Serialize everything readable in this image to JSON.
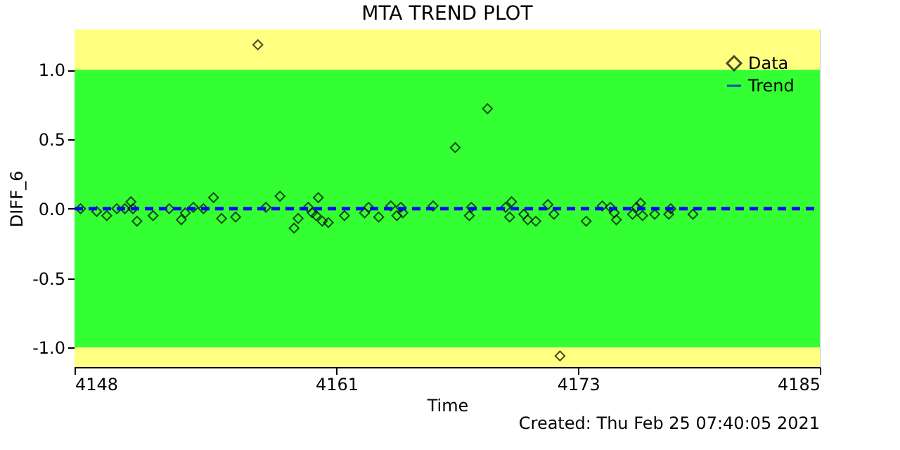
{
  "chart_data": {
    "type": "scatter",
    "title": "MTA TREND PLOT",
    "xlabel": "Time",
    "ylabel": "DIFF_6",
    "annotations": [
      "Created: Thu Feb 25 07:40:05 2021"
    ],
    "xlim": [
      4148,
      4185
    ],
    "xticks": [
      4148,
      4161,
      4173,
      4185
    ],
    "ylim": [
      -1.14,
      1.29
    ],
    "yticks": [
      {
        "value": -1,
        "label": "-1.0"
      },
      {
        "value": -0.5,
        "label": "-0.5"
      },
      {
        "value": 0,
        "label": "0.0"
      },
      {
        "value": 0.5,
        "label": "0.5"
      },
      {
        "value": 1,
        "label": "1.0"
      }
    ],
    "bands": [
      {
        "axis": "y",
        "from": 1,
        "to": 1.29,
        "color": "#ffff80"
      },
      {
        "axis": "y",
        "from": -1,
        "to": 1,
        "color": "#33ff33"
      },
      {
        "axis": "y",
        "from": -1.14,
        "to": -1,
        "color": "#ffff80"
      }
    ],
    "grid": false,
    "legend": "top right",
    "series": [
      {
        "name": "Data",
        "type": "scatter",
        "marker": "diamond",
        "color": "#000000",
        "x": [
          4148.3,
          4149.1,
          4149.6,
          4150.1,
          4150.5,
          4150.8,
          4150.9,
          4151.1,
          4151.9,
          4152.7,
          4153.3,
          4153.5,
          4153.9,
          4154.4,
          4154.9,
          4155.3,
          4156.0,
          4157.1,
          4157.5,
          4158.2,
          4158.9,
          4159.1,
          4159.6,
          4159.8,
          4160.0,
          4160.1,
          4160.3,
          4160.6,
          4161.4,
          4162.4,
          4162.6,
          4163.1,
          4163.7,
          4164.0,
          4164.2,
          4164.3,
          4165.8,
          4166.9,
          4167.6,
          4167.7,
          4168.5,
          4169.4,
          4169.6,
          4169.7,
          4170.3,
          4170.5,
          4170.9,
          4171.5,
          4171.8,
          4172.1,
          4173.4,
          4174.2,
          4174.6,
          4174.8,
          4174.9,
          4175.7,
          4175.9,
          4176.1,
          4176.2,
          4176.8,
          4177.5,
          4177.6,
          4178.7
        ],
        "values": [
          0,
          -0.02,
          -0.05,
          0,
          0,
          0.05,
          0,
          -0.09,
          -0.05,
          0,
          -0.08,
          -0.03,
          0.01,
          0,
          0.08,
          -0.07,
          -0.06,
          1.18,
          0.01,
          0.09,
          -0.14,
          -0.07,
          0.01,
          -0.03,
          -0.05,
          0.08,
          -0.09,
          -0.1,
          -0.05,
          -0.03,
          0.01,
          -0.06,
          0.02,
          -0.05,
          0.01,
          -0.03,
          0.02,
          0.44,
          -0.05,
          0.01,
          0.72,
          0.01,
          -0.06,
          0.05,
          -0.04,
          -0.08,
          -0.09,
          0.03,
          -0.04,
          -1.06,
          -0.09,
          0.02,
          0.01,
          -0.03,
          -0.08,
          -0.04,
          0.01,
          0.04,
          -0.05,
          -0.04,
          -0.04,
          0,
          -0.04
        ]
      },
      {
        "name": "Trend",
        "type": "line",
        "line_style": "dashed",
        "color": "#0000ff",
        "x": [
          4148,
          4185
        ],
        "values": [
          0,
          0
        ]
      }
    ]
  }
}
